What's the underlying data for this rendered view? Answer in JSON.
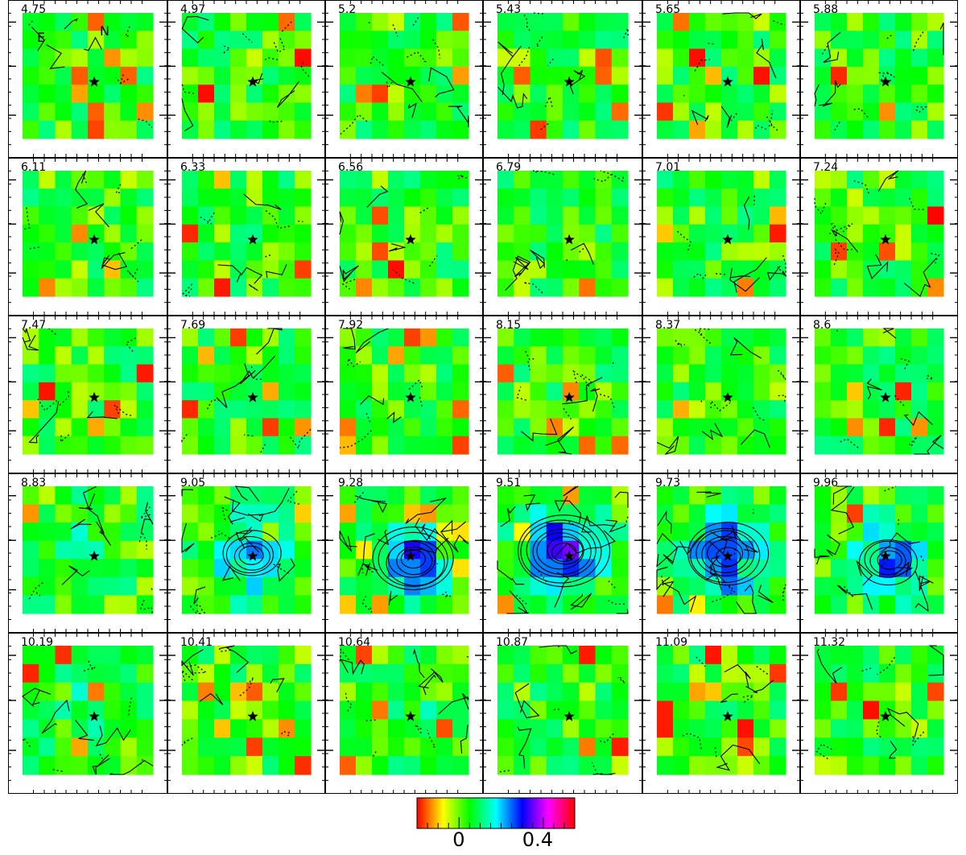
{
  "chart_data": {
    "type": "heatmap",
    "layout": {
      "rows": 5,
      "cols": 6
    },
    "panels": [
      {
        "label": "4.75"
      },
      {
        "label": "4.97"
      },
      {
        "label": "5.2"
      },
      {
        "label": "5.43"
      },
      {
        "label": "5.65"
      },
      {
        "label": "5.88"
      },
      {
        "label": "6.11"
      },
      {
        "label": "6.33"
      },
      {
        "label": "6.56"
      },
      {
        "label": "6.79"
      },
      {
        "label": "7.01"
      },
      {
        "label": "7.24"
      },
      {
        "label": "7.47"
      },
      {
        "label": "7.69"
      },
      {
        "label": "7.92"
      },
      {
        "label": "8.15"
      },
      {
        "label": "8.37"
      },
      {
        "label": "8.6"
      },
      {
        "label": "8.83"
      },
      {
        "label": "9.05"
      },
      {
        "label": "9.28"
      },
      {
        "label": "9.51"
      },
      {
        "label": "9.73"
      },
      {
        "label": "9.96"
      },
      {
        "label": "10.19"
      },
      {
        "label": "10.41"
      },
      {
        "label": "10.64"
      },
      {
        "label": "10.87"
      },
      {
        "label": "11.09"
      },
      {
        "label": "11.32"
      }
    ],
    "marker": "star",
    "colorbar": {
      "colors": [
        "#ff0000",
        "#ffff00",
        "#00ff00",
        "#00ffff",
        "#0000ff",
        "#ff00ff",
        "#ff0000"
      ],
      "range": [
        -0.2,
        0.55
      ],
      "ticks": [
        {
          "value": 0,
          "label": "0"
        },
        {
          "value": 0.4,
          "label": "0.4"
        }
      ]
    },
    "overlay_labels": {
      "panel": "4.75",
      "letters": [
        "E",
        "N"
      ]
    }
  }
}
